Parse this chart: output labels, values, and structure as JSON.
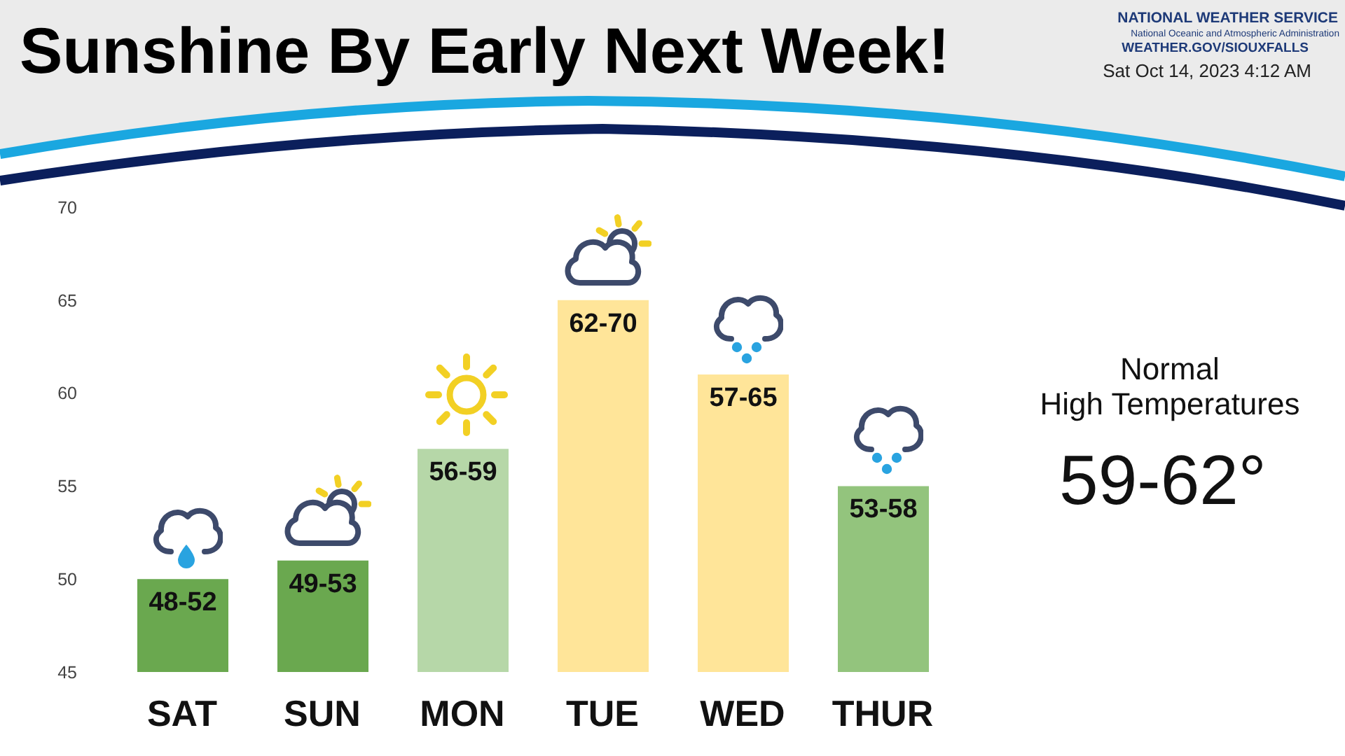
{
  "chart_data": {
    "type": "bar",
    "title": "Sunshine By Early Next Week!",
    "categories": [
      "SAT",
      "SUN",
      "MON",
      "TUE",
      "WED",
      "THUR"
    ],
    "values": [
      50,
      51,
      57,
      65,
      61,
      55
    ],
    "colors": [
      "#6aa84f",
      "#6aa84f",
      "#b6d7a8",
      "#ffe599",
      "#ffe599",
      "#93c47d"
    ],
    "value_labels": [
      "48-52",
      "49-53",
      "56-59",
      "62-70",
      "57-65",
      "53-58"
    ],
    "ylim": [
      45,
      70
    ],
    "yticks": [
      45,
      50,
      55,
      60,
      65,
      70
    ],
    "annotations": [
      "NATIONAL WEATHER SERVICE",
      "National Oceanic and Atmospheric Administration",
      "WEATHER.GOV/SIOUXFALLS",
      "Sat Oct 14, 2023 4:12 AM",
      "Normal",
      "High Temperatures",
      "59-62°"
    ]
  }
}
